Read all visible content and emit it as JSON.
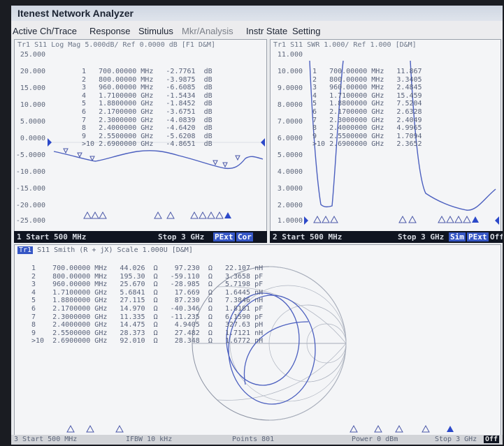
{
  "app": {
    "title": "Itenest Network Analyzer"
  },
  "menu": [
    {
      "label": "Active Ch/Trace"
    },
    {
      "label": "Response"
    },
    {
      "label": "Stimulus"
    },
    {
      "label": "Mkr/Analysis"
    },
    {
      "label": "Instr State"
    },
    {
      "label": "Setting"
    }
  ],
  "ch1": {
    "header": "Tr1 S11 Log Mag 5.000dB/ Ref  0.0000 dB [F1 D&M]",
    "y_labels": [
      "25.000",
      "20.000",
      "15.000",
      "10.000",
      "5.0000",
      "0.0000",
      "-5.0000",
      "-10.000",
      "-15.000",
      "-20.000",
      "-25.000"
    ],
    "markers": [
      "1   700.00000 MHz   -2.7761  dB",
      "2   800.00000 MHz   -3.9875  dB",
      "3   960.00000 MHz   -6.6085  dB",
      "4   1.7100000 GHz   -1.5434  dB",
      "5   1.8800000 GHz   -1.8452  dB",
      "6   2.1700000 GHz   -3.6751  dB",
      "7   2.3000000 GHz   -4.0839  dB",
      "8   2.4000000 GHz   -4.6420  dB",
      "9   2.5500000 GHz   -5.6208  dB",
      ">10 2.6900000 GHz   -4.8651  dB"
    ],
    "status": {
      "start": "1 Start 500 MHz",
      "stop": "Stop 3 GHz",
      "tag1": "PExt",
      "tag2": "Cor"
    }
  },
  "ch2": {
    "header": "Tr1 S11 SWR 1.000/ Ref  1.000  [D&M]",
    "y_labels": [
      "11.000",
      "10.000",
      "9.0000",
      "8.0000",
      "7.0000",
      "6.0000",
      "5.0000",
      "4.0000",
      "3.0000",
      "2.0000",
      "1.0000"
    ],
    "markers": [
      "1   700.00000 MHz   11.867",
      "2   800.00000 MHz   3.3405",
      "3   960.00000 MHz   2.4845",
      "4   1.7100000 GHz   15.459",
      "5   1.8800000 GHz   7.5204",
      "6   2.1700000 GHz   2.6328",
      "7   2.3000000 GHz   2.4049",
      "8   2.4000000 GHz   4.9965",
      "9   2.5500000 GHz   1.7094",
      ">10 2.6900000 GHz   2.3652"
    ],
    "status": {
      "start": "2 Start 500 MHz",
      "stop": "Stop 3 GHz",
      "tag1": "Sim",
      "tag2": "PExt",
      "tag3": "Off"
    }
  },
  "ch3": {
    "trace_tag": "Tr1",
    "header": "S11 Smith (R + jX) Scale 1.000U [D&M]",
    "markers": [
      "1    700.00000 MHz   44.026  Ω    97.230  Ω   22.107 nH",
      "2    800.00000 MHz   195.30  Ω   -59.110  Ω   3.3658 pF",
      "3    960.00000 MHz   25.670  Ω   -28.985  Ω   5.7198 pF",
      "4    1.7100000 GHz   5.6841  Ω    17.669  Ω   1.6445 nH",
      "5    1.8800000 GHz   27.115  Ω    87.230  Ω   7.3846 nH",
      "6    2.1700000 GHz   14.970  Ω   -40.346  Ω   1.8181 pF",
      "7    2.3000000 GHz   11.335  Ω   -11.235  Ω   6.1590 pF",
      "8    2.4000000 GHz   14.475  Ω    4.9405  Ω   327.63 pH",
      "9    2.5500000 GHz   28.373  Ω    27.482  Ω   1.7121 nH",
      ">10  2.6900000 GHz   92.010  Ω    28.348  Ω   1.6772 nH"
    ],
    "status": {
      "start": "3 Start 500 MHz",
      "ifbw": "IFBW 10 kHz",
      "points": "Points 801",
      "power": "Power 0 dBm",
      "stop": "Stop 3 GHz",
      "tag": "Off"
    }
  }
}
